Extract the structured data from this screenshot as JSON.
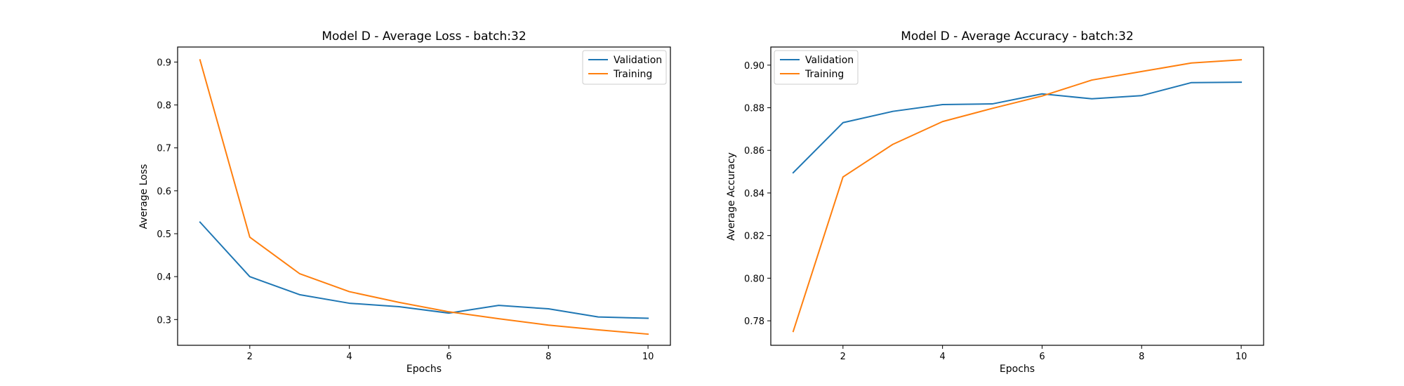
{
  "chart_data": [
    {
      "type": "line",
      "title": "Model D - Average Loss - batch:32",
      "xlabel": "Epochs",
      "ylabel": "Average Loss",
      "xlim": [
        0.55,
        10.45
      ],
      "ylim": [
        0.24,
        0.935
      ],
      "xticks": [
        2,
        4,
        6,
        8,
        10
      ],
      "yticks": [
        0.3,
        0.4,
        0.5,
        0.6,
        0.7,
        0.8,
        0.9
      ],
      "ytick_labels": [
        "0.3",
        "0.4",
        "0.5",
        "0.6",
        "0.7",
        "0.8",
        "0.9"
      ],
      "grid": false,
      "legend_position": "upper right",
      "x": [
        1,
        2,
        3,
        4,
        5,
        6,
        7,
        8,
        9,
        10
      ],
      "series": [
        {
          "name": "Validation",
          "color": "#1f77b4",
          "values": [
            0.527,
            0.4,
            0.358,
            0.338,
            0.33,
            0.315,
            0.333,
            0.325,
            0.306,
            0.303
          ]
        },
        {
          "name": "Training",
          "color": "#ff7f0e",
          "values": [
            0.905,
            0.492,
            0.407,
            0.365,
            0.34,
            0.318,
            0.302,
            0.287,
            0.276,
            0.266
          ]
        }
      ]
    },
    {
      "type": "line",
      "title": "Model D - Average Accuracy - batch:32",
      "xlabel": "Epochs",
      "ylabel": "Average Accuracy",
      "xlim": [
        0.55,
        10.45
      ],
      "ylim": [
        0.7685,
        0.9085
      ],
      "xticks": [
        2,
        4,
        6,
        8,
        10
      ],
      "yticks": [
        0.78,
        0.8,
        0.82,
        0.84,
        0.86,
        0.88,
        0.9
      ],
      "ytick_labels": [
        "0.78",
        "0.80",
        "0.82",
        "0.84",
        "0.86",
        "0.88",
        "0.90"
      ],
      "grid": false,
      "legend_position": "upper left",
      "x": [
        1,
        2,
        3,
        4,
        5,
        6,
        7,
        8,
        9,
        10
      ],
      "series": [
        {
          "name": "Validation",
          "color": "#1f77b4",
          "values": [
            0.8495,
            0.873,
            0.8783,
            0.8815,
            0.8818,
            0.8865,
            0.8842,
            0.8857,
            0.8918,
            0.892
          ]
        },
        {
          "name": "Training",
          "color": "#ff7f0e",
          "values": [
            0.775,
            0.8475,
            0.8628,
            0.8735,
            0.8797,
            0.8855,
            0.893,
            0.897,
            0.901,
            0.9025
          ]
        }
      ]
    }
  ]
}
